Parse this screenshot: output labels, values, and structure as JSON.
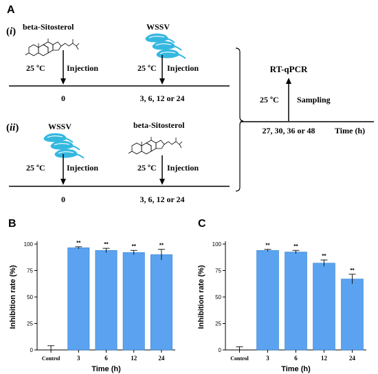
{
  "panel_a": {
    "letter": "A",
    "row_i_label_pre": "(",
    "row_i_label_mid": "i",
    "row_i_label_post": ")",
    "row_ii_label_pre": "(",
    "row_ii_label_mid": "ii",
    "row_ii_label_post": ")",
    "row_i": {
      "first_agent": "beta-Sitosterol",
      "second_agent": "WSSV",
      "temp_1": "25 ºC",
      "temp_2": "25 ºC",
      "action_1": "Injection",
      "action_2": "Injection",
      "time_1": "0",
      "time_2": "3, 6, 12 or 24"
    },
    "row_ii": {
      "first_agent": "WSSV",
      "second_agent": "beta-Sitosterol",
      "temp_1": "25 ºC",
      "temp_2": "25 ºC",
      "action_1": "Injection",
      "action_2": "Injection",
      "time_1": "0",
      "time_2": "3, 6, 12 or 24"
    },
    "right": {
      "assay": "RT-qPCR",
      "temp": "25 ºC",
      "action": "Sampling",
      "time": "27, 30, 36 or 48",
      "axis_label": "Time (h)"
    }
  },
  "chart_data": [
    {
      "panel": "B",
      "type": "bar",
      "categories": [
        "Control",
        "3",
        "6",
        "12",
        "24"
      ],
      "values": [
        0,
        96.5,
        94,
        92,
        90
      ],
      "errors": [
        4,
        1,
        2,
        2,
        5
      ],
      "annotations": [
        "",
        "**",
        "**",
        "**",
        "**"
      ],
      "xlabel": "Time (h)",
      "ylabel": "Inhibition rate (%)",
      "ylim": [
        0,
        100
      ],
      "yticks": [
        0,
        25,
        50,
        75,
        100
      ],
      "bar_color": "#5ba3f0"
    },
    {
      "panel": "C",
      "type": "bar",
      "categories": [
        "Control",
        "3",
        "6",
        "12",
        "24"
      ],
      "values": [
        0,
        94,
        92.5,
        82,
        67
      ],
      "errors": [
        3,
        1,
        1.5,
        3,
        4.5
      ],
      "annotations": [
        "",
        "**",
        "**",
        "**",
        "**"
      ],
      "xlabel": "Time (h)",
      "ylabel": "Inhibition rate (%)",
      "ylim": [
        0,
        100
      ],
      "yticks": [
        0,
        25,
        50,
        75,
        100
      ],
      "bar_color": "#5ba3f0"
    }
  ]
}
